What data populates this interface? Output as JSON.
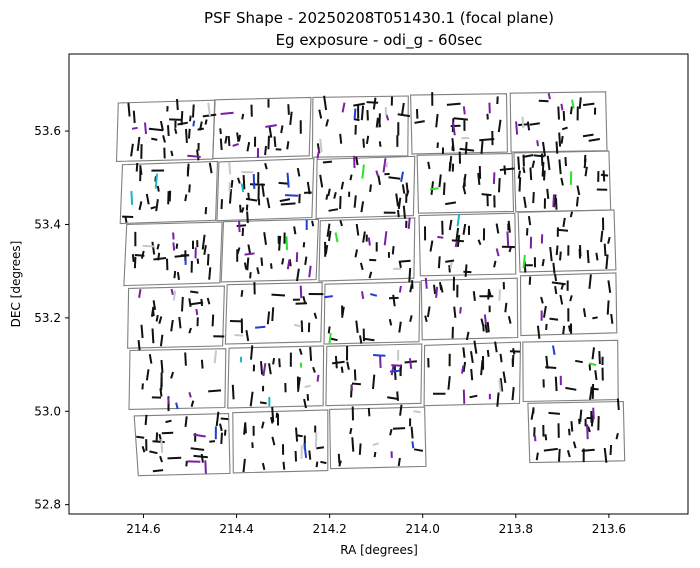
{
  "chart_data": {
    "type": "scatter",
    "title": [
      "PSF Shape - 20250208T051430.1 (focal plane)",
      "Eg exposure - odi_g - 60sec"
    ],
    "xlabel": "RA [degrees]",
    "ylabel": "DEC [degrees]",
    "xlim": [
      214.76,
      213.43
    ],
    "ylim": [
      52.78,
      53.765
    ],
    "x_ticks": [
      214.6,
      214.4,
      214.2,
      214.0,
      213.8,
      213.6
    ],
    "x_tick_labels": [
      "214.6",
      "214.4",
      "214.2",
      "214.0",
      "213.8",
      "213.6"
    ],
    "y_ticks": [
      52.8,
      53.0,
      53.2,
      53.4,
      53.6
    ],
    "y_tick_labels": [
      "52.8",
      "53.0",
      "53.2",
      "53.4",
      "53.6"
    ],
    "grid": false,
    "colors": {
      "ota_border": "#808080",
      "whisker_default": "#111111",
      "whisker_purple": "#7a1fa2",
      "whisker_blue": "#1f3fd0",
      "whisker_green": "#2fe02f",
      "whisker_cyan": "#19b5c8",
      "whisker_gray": "#c8c8c8"
    },
    "ota_outlines": [
      [
        [
          214.654,
          53.66
        ],
        [
          214.447,
          53.666
        ],
        [
          214.451,
          53.54
        ],
        [
          214.658,
          53.535
        ]
      ],
      [
        [
          214.446,
          53.667
        ],
        [
          214.24,
          53.672
        ],
        [
          214.244,
          53.547
        ],
        [
          214.451,
          53.541
        ]
      ],
      [
        [
          214.236,
          53.672
        ],
        [
          214.031,
          53.675
        ],
        [
          214.032,
          53.547
        ],
        [
          214.237,
          53.544
        ]
      ],
      [
        [
          214.026,
          53.677
        ],
        [
          213.82,
          53.68
        ],
        [
          213.818,
          53.555
        ],
        [
          214.023,
          53.551
        ]
      ],
      [
        [
          213.812,
          53.681
        ],
        [
          213.607,
          53.684
        ],
        [
          213.604,
          53.558
        ],
        [
          213.81,
          53.555
        ]
      ],
      [
        [
          214.645,
          53.528
        ],
        [
          214.441,
          53.535
        ],
        [
          214.445,
          53.409
        ],
        [
          214.65,
          53.402
        ]
      ],
      [
        [
          214.438,
          53.534
        ],
        [
          214.234,
          53.541
        ],
        [
          214.238,
          53.415
        ],
        [
          214.442,
          53.408
        ]
      ],
      [
        [
          214.227,
          53.539
        ],
        [
          214.017,
          53.546
        ],
        [
          214.02,
          53.419
        ],
        [
          214.229,
          53.413
        ]
      ],
      [
        [
          214.012,
          53.548
        ],
        [
          213.808,
          53.552
        ],
        [
          213.805,
          53.428
        ],
        [
          214.009,
          53.424
        ]
      ],
      [
        [
          213.804,
          53.553
        ],
        [
          213.6,
          53.557
        ],
        [
          213.596,
          53.431
        ],
        [
          213.8,
          53.427
        ]
      ],
      [
        [
          214.636,
          53.4
        ],
        [
          214.431,
          53.405
        ],
        [
          214.436,
          53.275
        ],
        [
          214.642,
          53.269
        ]
      ],
      [
        [
          214.428,
          53.406
        ],
        [
          214.224,
          53.411
        ],
        [
          214.229,
          53.282
        ],
        [
          214.433,
          53.277
        ]
      ],
      [
        [
          214.22,
          53.408
        ],
        [
          214.017,
          53.414
        ],
        [
          214.019,
          53.285
        ],
        [
          214.223,
          53.279
        ]
      ],
      [
        [
          214.008,
          53.419
        ],
        [
          213.802,
          53.424
        ],
        [
          213.8,
          53.294
        ],
        [
          214.005,
          53.29
        ]
      ],
      [
        [
          213.795,
          53.426
        ],
        [
          213.589,
          53.431
        ],
        [
          213.585,
          53.303
        ],
        [
          213.791,
          53.298
        ]
      ],
      [
        [
          214.632,
          53.263
        ],
        [
          214.426,
          53.268
        ],
        [
          214.43,
          53.14
        ],
        [
          214.634,
          53.135
        ]
      ],
      [
        [
          214.42,
          53.271
        ],
        [
          214.216,
          53.276
        ],
        [
          214.219,
          53.149
        ],
        [
          214.424,
          53.144
        ]
      ],
      [
        [
          214.21,
          53.272
        ],
        [
          214.006,
          53.277
        ],
        [
          214.008,
          53.149
        ],
        [
          214.212,
          53.144
        ]
      ],
      [
        [
          214.003,
          53.28
        ],
        [
          213.797,
          53.285
        ],
        [
          213.796,
          53.158
        ],
        [
          214.001,
          53.153
        ]
      ],
      [
        [
          213.79,
          53.29
        ],
        [
          213.585,
          53.296
        ],
        [
          213.583,
          53.168
        ],
        [
          213.789,
          53.162
        ]
      ],
      [
        [
          214.629,
          53.13
        ],
        [
          214.423,
          53.134
        ],
        [
          214.425,
          53.008
        ],
        [
          214.631,
          53.004
        ]
      ],
      [
        [
          214.416,
          53.135
        ],
        [
          214.213,
          53.14
        ],
        [
          214.214,
          53.012
        ],
        [
          214.419,
          53.007
        ]
      ],
      [
        [
          214.206,
          53.139
        ],
        [
          214.002,
          53.144
        ],
        [
          214.004,
          53.017
        ],
        [
          214.208,
          53.012
        ]
      ],
      [
        [
          213.996,
          53.141
        ],
        [
          213.79,
          53.148
        ],
        [
          213.792,
          53.017
        ],
        [
          213.997,
          53.012
        ]
      ],
      [
        [
          213.785,
          53.148
        ],
        [
          213.581,
          53.152
        ],
        [
          213.58,
          53.025
        ],
        [
          213.784,
          53.021
        ]
      ],
      [
        [
          214.62,
          52.99
        ],
        [
          214.417,
          52.995
        ],
        [
          214.414,
          52.867
        ],
        [
          214.611,
          52.862
        ]
      ],
      [
        [
          214.408,
          52.997
        ],
        [
          214.204,
          53.003
        ],
        [
          214.204,
          52.873
        ],
        [
          214.407,
          52.868
        ]
      ],
      [
        [
          214.2,
          53.004
        ],
        [
          213.996,
          53.009
        ],
        [
          213.993,
          52.882
        ],
        [
          214.198,
          52.877
        ]
      ],
      [
        [
          213.774,
          53.017
        ],
        [
          213.569,
          53.021
        ],
        [
          213.566,
          52.894
        ],
        [
          213.77,
          52.89
        ]
      ]
    ],
    "whisker_groups": [
      {
        "name": "black",
        "color": "#111111",
        "count": 620
      },
      {
        "name": "purple",
        "color": "#7a1fa2",
        "count": 70
      },
      {
        "name": "blue",
        "color": "#1f3fd0",
        "count": 18
      },
      {
        "name": "green",
        "color": "#2fe02f",
        "count": 10
      },
      {
        "name": "cyan",
        "color": "#19b5c8",
        "count": 6
      },
      {
        "name": "gray",
        "color": "#c8c8c8",
        "count": 25
      }
    ]
  }
}
